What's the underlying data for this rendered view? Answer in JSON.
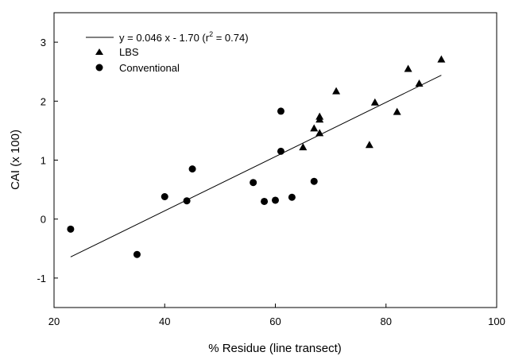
{
  "chart_data": {
    "type": "scatter",
    "title": "",
    "xlabel": "% Residue (line transect)",
    "ylabel": "CAI (x 100)",
    "xlim": [
      20,
      100
    ],
    "ylim": [
      -1.5,
      3.5
    ],
    "x_ticks": [
      20,
      40,
      60,
      80,
      100
    ],
    "y_ticks": [
      -1,
      0,
      1,
      2,
      3
    ],
    "x_tick_labels": [
      "20",
      "40",
      "60",
      "80",
      "100"
    ],
    "y_tick_labels": [
      "-1",
      "0",
      "1",
      "2",
      "3"
    ],
    "grid": false,
    "legend_position": "top-left",
    "series": [
      {
        "name": "LBS",
        "marker": "triangle",
        "points": [
          [
            65,
            1.22
          ],
          [
            67,
            1.54
          ],
          [
            68,
            1.74
          ],
          [
            68,
            1.69
          ],
          [
            68,
            1.46
          ],
          [
            71,
            2.17
          ],
          [
            77,
            1.26
          ],
          [
            78,
            1.98
          ],
          [
            82,
            1.82
          ],
          [
            84,
            2.55
          ],
          [
            86,
            2.3
          ],
          [
            90,
            2.71
          ]
        ]
      },
      {
        "name": "Conventional",
        "marker": "circle",
        "points": [
          [
            23,
            -0.17
          ],
          [
            35,
            -0.6
          ],
          [
            40,
            0.38
          ],
          [
            44,
            0.31
          ],
          [
            45,
            0.85
          ],
          [
            56,
            0.62
          ],
          [
            58,
            0.3
          ],
          [
            60,
            0.32
          ],
          [
            61,
            1.83
          ],
          [
            61,
            1.15
          ],
          [
            63,
            0.37
          ],
          [
            67,
            0.64
          ]
        ]
      }
    ],
    "regression": {
      "label_prefix": "y = 0.046 x - 1.70 (r",
      "label_sup": "2",
      "label_suffix": " = 0.74)",
      "slope": 0.046,
      "intercept": -1.7,
      "x_range": [
        23,
        90
      ]
    }
  }
}
